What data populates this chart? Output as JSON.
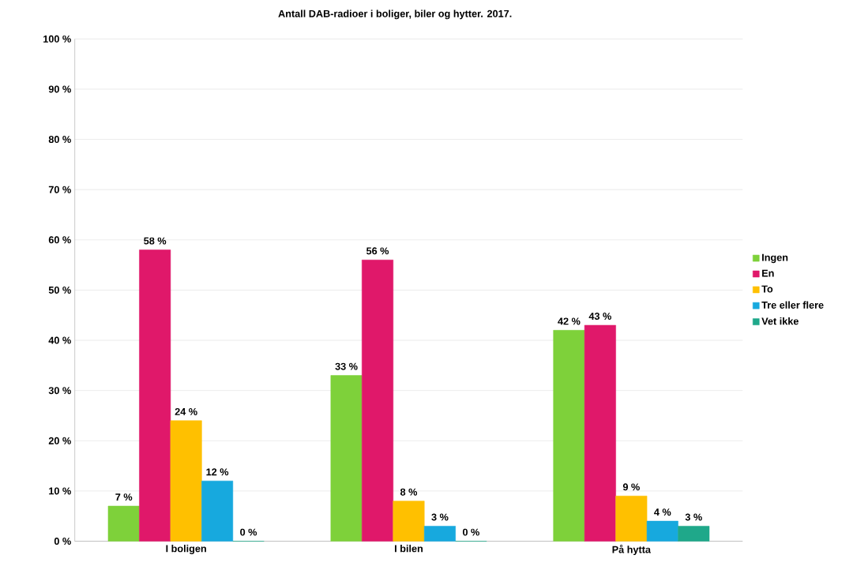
{
  "chart_data": {
    "type": "bar",
    "title": "Antall DAB-radioer i boliger, biler og hytter. 2017.",
    "categories": [
      "I boligen",
      "I bilen",
      "På hytta"
    ],
    "series": [
      {
        "name": "Ingen",
        "color": "#7ed13a",
        "values": [
          7,
          33,
          42
        ],
        "value_labels": [
          "7 %",
          "33 %",
          "42 %"
        ]
      },
      {
        "name": "En",
        "color": "#e0186a",
        "values": [
          58,
          56,
          43
        ],
        "value_labels": [
          "58 %",
          "56 %",
          "43 %"
        ]
      },
      {
        "name": "To",
        "color": "#ffc000",
        "values": [
          24,
          8,
          9
        ],
        "value_labels": [
          "24 %",
          "8 %",
          "9 %"
        ]
      },
      {
        "name": "Tre eller flere",
        "color": "#17a9de",
        "values": [
          12,
          3,
          4
        ],
        "value_labels": [
          "12 %",
          "3 %",
          "4 %"
        ]
      },
      {
        "name": "Vet ikke",
        "color": "#1fa88a",
        "values": [
          0,
          0,
          3
        ],
        "value_labels": [
          "0 %",
          "0 %",
          "3 %"
        ]
      }
    ],
    "ylim": [
      0,
      100
    ],
    "yticks": [
      {
        "value": 0,
        "label": "0 %"
      },
      {
        "value": 10,
        "label": "10 %"
      },
      {
        "value": 20,
        "label": "20 %"
      },
      {
        "value": 30,
        "label": "30 %"
      },
      {
        "value": 40,
        "label": "40 %"
      },
      {
        "value": 50,
        "label": "50 %"
      },
      {
        "value": 60,
        "label": "60 %"
      },
      {
        "value": 70,
        "label": "70 %"
      },
      {
        "value": 80,
        "label": "80 %"
      },
      {
        "value": 90,
        "label": "90 %"
      },
      {
        "value": 100,
        "label": "100 %"
      }
    ],
    "grid": "y",
    "legend": "right"
  }
}
